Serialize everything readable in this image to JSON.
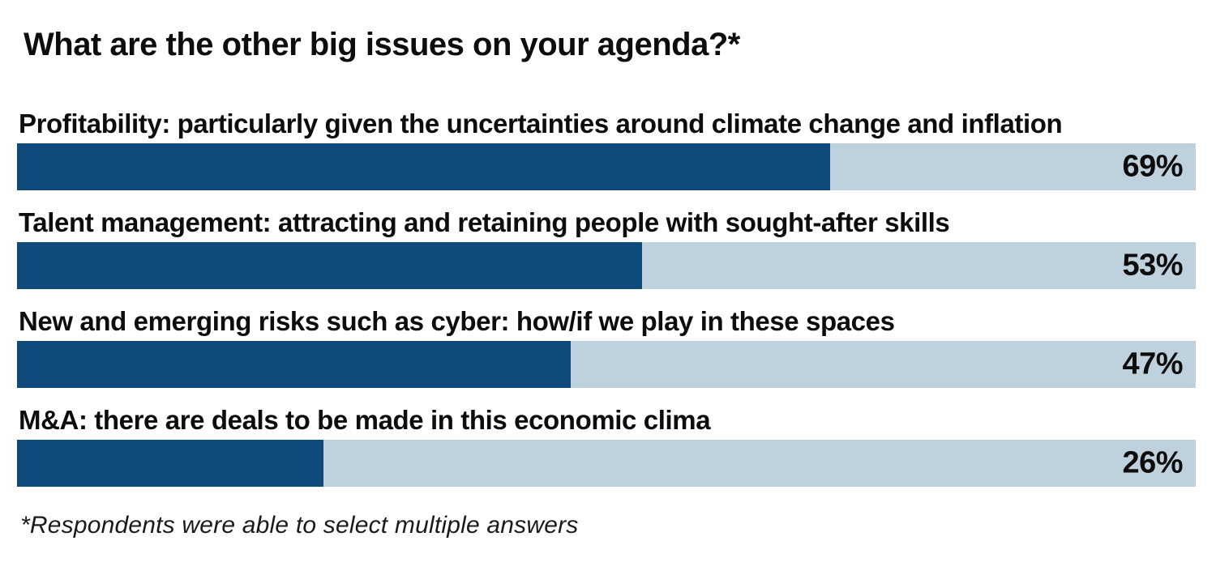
{
  "chart_data": {
    "type": "bar",
    "orientation": "horizontal",
    "title": "What are the other big issues on your agenda?*",
    "footnote": "*Respondents were able to select multiple answers",
    "categories": [
      "Profitability: particularly given the uncertainties around climate change and inflation",
      "Talent management: attracting and retaining people with sought-after skills",
      "New and emerging risks such as cyber: how/if we play in these spaces",
      "M&A: there are deals to be made in this economic clima"
    ],
    "values": [
      69,
      53,
      47,
      26
    ],
    "value_labels": [
      "69%",
      "53%",
      "47%",
      "26%"
    ],
    "xlim": [
      0,
      100
    ],
    "value_label_position": "inside-right",
    "grid": false,
    "legend": false,
    "colors": {
      "bar_fill": "#0f4a7d",
      "bar_track": "#c0d1de",
      "text": "#0d0d0d",
      "background": "#ffffff"
    }
  }
}
